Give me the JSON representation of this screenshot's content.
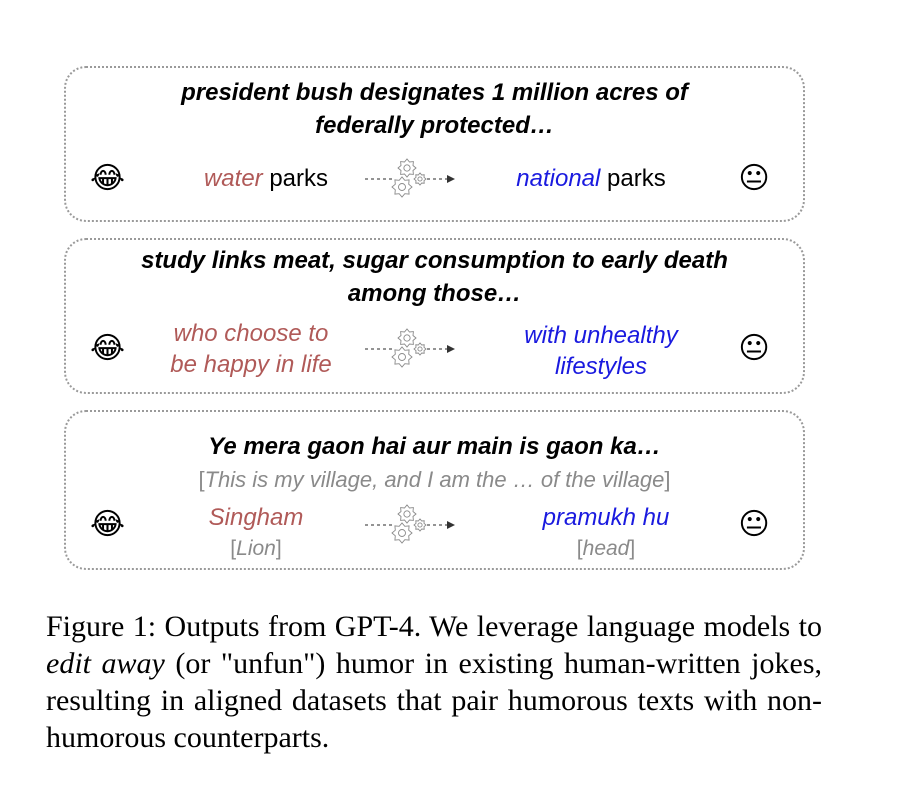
{
  "examples": [
    {
      "headline_lines": [
        "president bush designates 1 million acres of",
        "federally protected…"
      ],
      "funny": {
        "emph": "water",
        "rest": " parks"
      },
      "unfun": {
        "emph": "national",
        "rest": " parks"
      },
      "funny_emoji": "😂",
      "neutral_emoji": "😐"
    },
    {
      "headline_lines": [
        "study links meat, sugar consumption to early death",
        "among those…"
      ],
      "funny_lines": [
        "who choose to",
        "be happy in life"
      ],
      "unfun_lines": [
        "with unhealthy",
        "lifestyles"
      ],
      "funny_emoji": "😂",
      "neutral_emoji": "😐"
    },
    {
      "headline": "Ye mera gaon hai aur main is gaon ka…",
      "translation": "This is my village, and I am the … of the village",
      "funny": "Singham",
      "funny_gloss": "Lion",
      "unfun": "pramukh hu",
      "unfun_gloss": "head",
      "funny_emoji": "😂",
      "neutral_emoji": "😐"
    }
  ],
  "caption": {
    "prefix": "Figure 1: Outputs from ",
    "model": "GPT-4",
    "part1": ". We leverage language models to ",
    "emph": "edit away",
    "part2": " (or \"unfun\") humor in existing human-written jokes, resulting in aligned datasets that pair humorous texts with non-humorous counterparts."
  },
  "colors": {
    "funny_text": "#b05a58",
    "unfun_text": "#1a1adf",
    "gloss_text": "#8a8a8a",
    "border": "#9a9a9a"
  },
  "icons": [
    "laughing-emoji-icon",
    "neutral-face-emoji-icon",
    "gears-icon",
    "dashed-arrow-icon"
  ]
}
